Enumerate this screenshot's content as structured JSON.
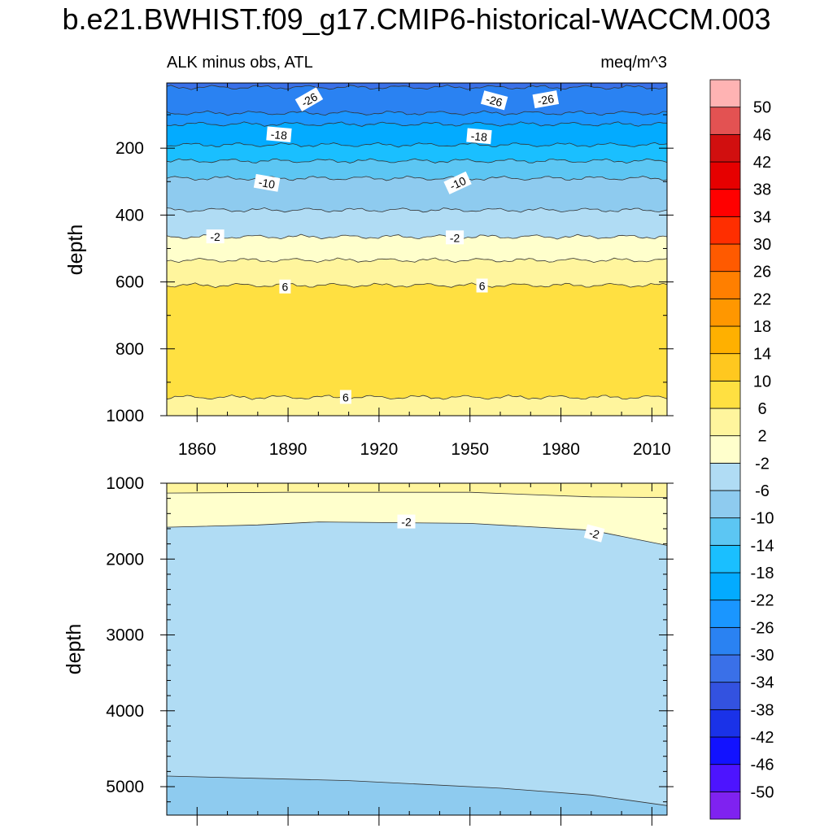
{
  "title": "b.e21.BWHIST.f09_g17.CMIP6-historical-WACCM.003",
  "chart_data": [
    {
      "type": "heatmap",
      "panel": "upper",
      "left_label": "ALK minus obs, ATL",
      "right_label": "meq/m^3",
      "ylabel": "depth",
      "xlabel": "",
      "xlim": [
        1850,
        2015
      ],
      "ylim": [
        1000,
        5
      ],
      "xticks": [
        1860,
        1890,
        1920,
        1950,
        1980,
        2010
      ],
      "yticks": [
        200,
        400,
        600,
        800,
        1000
      ],
      "bands": [
        {
          "from_depth": 5,
          "to_depth": 18,
          "value": -32
        },
        {
          "from_depth": 18,
          "to_depth": 95,
          "value": -28
        },
        {
          "from_depth": 95,
          "to_depth": 128,
          "value": -24
        },
        {
          "from_depth": 128,
          "to_depth": 190,
          "value": -20
        },
        {
          "from_depth": 190,
          "to_depth": 238,
          "value": -16
        },
        {
          "from_depth": 238,
          "to_depth": 290,
          "value": -12
        },
        {
          "from_depth": 290,
          "to_depth": 385,
          "value": -8
        },
        {
          "from_depth": 385,
          "to_depth": 465,
          "value": -4
        },
        {
          "from_depth": 465,
          "to_depth": 535,
          "value": 0
        },
        {
          "from_depth": 535,
          "to_depth": 610,
          "value": 4
        },
        {
          "from_depth": 610,
          "to_depth": 945,
          "value": 8
        },
        {
          "from_depth": 945,
          "to_depth": 1000,
          "value": 4
        }
      ],
      "contour_labels": [
        {
          "text": "-26",
          "year": 1897,
          "depth": 55,
          "angle": -30
        },
        {
          "text": "-26",
          "year": 1958,
          "depth": 58,
          "angle": 15
        },
        {
          "text": "-26",
          "year": 1975,
          "depth": 55,
          "angle": -10
        },
        {
          "text": "-18",
          "year": 1887,
          "depth": 160,
          "angle": 5
        },
        {
          "text": "-18",
          "year": 1953,
          "depth": 165,
          "angle": 5
        },
        {
          "text": "-10",
          "year": 1883,
          "depth": 305,
          "angle": 10
        },
        {
          "text": "-10",
          "year": 1946,
          "depth": 305,
          "angle": -25
        },
        {
          "text": "-2",
          "year": 1866,
          "depth": 465,
          "angle": 0
        },
        {
          "text": "-2",
          "year": 1945,
          "depth": 468,
          "angle": 0
        },
        {
          "text": "6",
          "year": 1889,
          "depth": 615,
          "angle": 0
        },
        {
          "text": "6",
          "year": 1954,
          "depth": 612,
          "angle": 0
        },
        {
          "text": "6",
          "year": 1909,
          "depth": 945,
          "angle": 0
        }
      ]
    },
    {
      "type": "heatmap",
      "panel": "lower",
      "ylabel": "depth",
      "xlabel": "",
      "xlim": [
        1850,
        2015
      ],
      "ylim": [
        5375,
        1000
      ],
      "yticks": [
        1000,
        2000,
        3000,
        4000,
        5000
      ],
      "boundaries": [
        {
          "name": "2-contour",
          "points": [
            [
              1850,
              1130
            ],
            [
              1890,
              1120
            ],
            [
              1950,
              1120
            ],
            [
              1990,
              1180
            ],
            [
              2015,
              1190
            ]
          ]
        },
        {
          "name": "-2-contour",
          "points": [
            [
              1850,
              1580
            ],
            [
              1880,
              1550
            ],
            [
              1900,
              1510
            ],
            [
              1950,
              1530
            ],
            [
              1990,
              1620
            ],
            [
              2015,
              1820
            ]
          ]
        },
        {
          "name": "-6-contour",
          "points": [
            [
              1850,
              4860
            ],
            [
              1910,
              4920
            ],
            [
              1960,
              5020
            ],
            [
              1990,
              5110
            ],
            [
              2015,
              5250
            ]
          ]
        }
      ],
      "regions": [
        {
          "value": 4,
          "between": [
            "top",
            "2-contour"
          ]
        },
        {
          "value": 0,
          "between": [
            "2-contour",
            "-2-contour"
          ]
        },
        {
          "value": -4,
          "between": [
            "-2-contour",
            "-6-contour"
          ]
        },
        {
          "value": -8,
          "between": [
            "-6-contour",
            "bottom"
          ]
        }
      ],
      "contour_labels": [
        {
          "text": "-2",
          "year": 1929,
          "depth": 1510,
          "angle": 0
        },
        {
          "text": "-2",
          "year": 1991,
          "depth": 1665,
          "angle": 15
        }
      ]
    }
  ],
  "colorbar": {
    "labels": [
      "50",
      "46",
      "42",
      "38",
      "34",
      "30",
      "26",
      "22",
      "18",
      "14",
      "10",
      "6",
      "2",
      "-2",
      "-6",
      "-10",
      "-14",
      "-18",
      "-22",
      "-26",
      "-30",
      "-34",
      "-38",
      "-42",
      "-46",
      "-50"
    ],
    "colors": [
      "#7f22f0",
      "#4d14ff",
      "#1212ff",
      "#1a32e8",
      "#3352e0",
      "#3a70e8",
      "#2a82f2",
      "#1a96ff",
      "#03abff",
      "#1abfff",
      "#5cc6f3",
      "#8ecbef",
      "#b0dcf4",
      "#ffffcc",
      "#fff59d",
      "#ffe041",
      "#ffc81f",
      "#ffb000",
      "#ff9700",
      "#ff7f00",
      "#ff5a00",
      "#ff2e00",
      "#ff0000",
      "#e60000",
      "#d10f0f",
      "#e35252",
      "#ffb3b3"
    ]
  }
}
